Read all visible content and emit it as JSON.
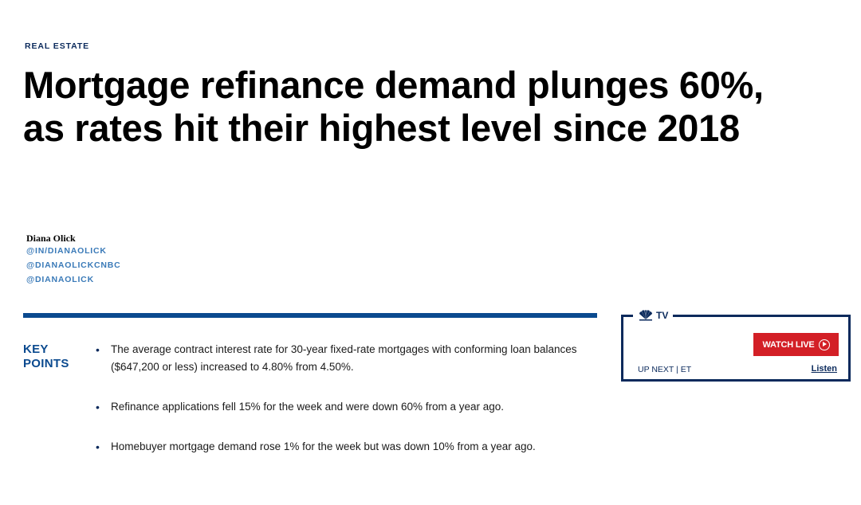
{
  "section": {
    "tag": "REAL ESTATE"
  },
  "headline": "Mortgage refinance demand plunges 60%, as rates hit their highest level since 2018",
  "author": {
    "name": "Diana Olick",
    "links": [
      "@IN/DIANAOLICK",
      "@DIANAOLICKCNBC",
      "@DIANAOLICK"
    ]
  },
  "key_points": {
    "heading_line1": "KEY",
    "heading_line2": "POINTS",
    "items": [
      "The average contract interest rate for 30-year fixed-rate mortgages with conforming loan balances ($647,200 or less) increased to 4.80% from 4.50%.",
      "Refinance applications fell 15% for the week and were down 60% from a year ago.",
      "Homebuyer mortgage demand rose 1% for the week but was down 10% from a year ago."
    ]
  },
  "tv_widget": {
    "label": "TV",
    "watch_live": "WATCH LIVE",
    "up_next": "UP NEXT | ET",
    "listen": "Listen"
  },
  "colors": {
    "brand_navy": "#0b2a5c",
    "brand_blue": "#0b4a8f",
    "link_blue": "#3a7ab8",
    "live_red": "#d31f26"
  },
  "icons": {
    "logo": "nbc-peacock-icon",
    "play": "play-circle-icon",
    "bullet": "bullet-dot"
  }
}
